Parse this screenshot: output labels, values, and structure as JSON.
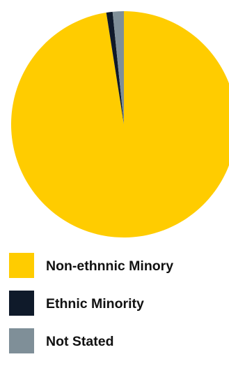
{
  "chart_data": {
    "type": "pie",
    "title": "",
    "slices": [
      {
        "label": "Non-ethnnic Minory",
        "value": 97.5,
        "color": "#FFCC00"
      },
      {
        "label": "Ethnic Minority",
        "value": 0.9,
        "color": "#0F1A2A"
      },
      {
        "label": "Not Stated",
        "value": 1.6,
        "color": "#7F8F98"
      }
    ],
    "legend_placement": "bottom-left",
    "start_angle_deg": 0,
    "direction": "clockwise"
  },
  "legend": {
    "items": [
      {
        "label": "Non-ethnnic Minory",
        "color": "#FFCC00"
      },
      {
        "label": "Ethnic Minority",
        "color": "#0F1A2A"
      },
      {
        "label": "Not Stated",
        "color": "#7F8F98"
      }
    ]
  }
}
